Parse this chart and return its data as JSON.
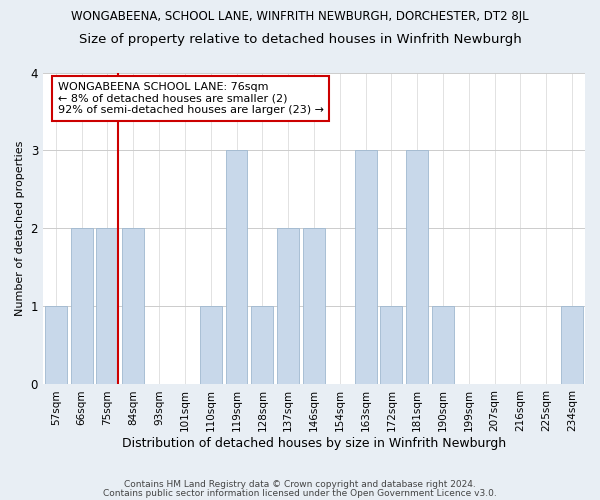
{
  "title": "WONGABEENA, SCHOOL LANE, WINFRITH NEWBURGH, DORCHESTER, DT2 8JL",
  "subtitle": "Size of property relative to detached houses in Winfrith Newburgh",
  "xlabel": "Distribution of detached houses by size in Winfrith Newburgh",
  "ylabel": "Number of detached properties",
  "categories": [
    "57sqm",
    "66sqm",
    "75sqm",
    "84sqm",
    "93sqm",
    "101sqm",
    "110sqm",
    "119sqm",
    "128sqm",
    "137sqm",
    "146sqm",
    "154sqm",
    "163sqm",
    "172sqm",
    "181sqm",
    "190sqm",
    "199sqm",
    "207sqm",
    "216sqm",
    "225sqm",
    "234sqm"
  ],
  "values": [
    1,
    2,
    2,
    2,
    0,
    0,
    1,
    3,
    1,
    2,
    2,
    0,
    3,
    1,
    3,
    1,
    0,
    0,
    0,
    0,
    1
  ],
  "bar_color": "#c8d8ea",
  "bar_edge_color": "#a0b8d0",
  "highlight_index": 2,
  "highlight_line_color": "#cc0000",
  "annotation_text": "WONGABEENA SCHOOL LANE: 76sqm\n← 8% of detached houses are smaller (2)\n92% of semi-detached houses are larger (23) →",
  "annotation_box_color": "#ffffff",
  "annotation_box_edge_color": "#cc0000",
  "ylim": [
    0,
    4
  ],
  "yticks": [
    0,
    1,
    2,
    3,
    4
  ],
  "footer_line1": "Contains HM Land Registry data © Crown copyright and database right 2024.",
  "footer_line2": "Contains public sector information licensed under the Open Government Licence v3.0.",
  "background_color": "#e8eef4",
  "plot_background_color": "#ffffff",
  "title_fontsize": 8.5,
  "subtitle_fontsize": 9.5,
  "xlabel_fontsize": 9,
  "ylabel_fontsize": 8,
  "tick_fontsize": 7.5,
  "annotation_fontsize": 8,
  "footer_fontsize": 6.5
}
